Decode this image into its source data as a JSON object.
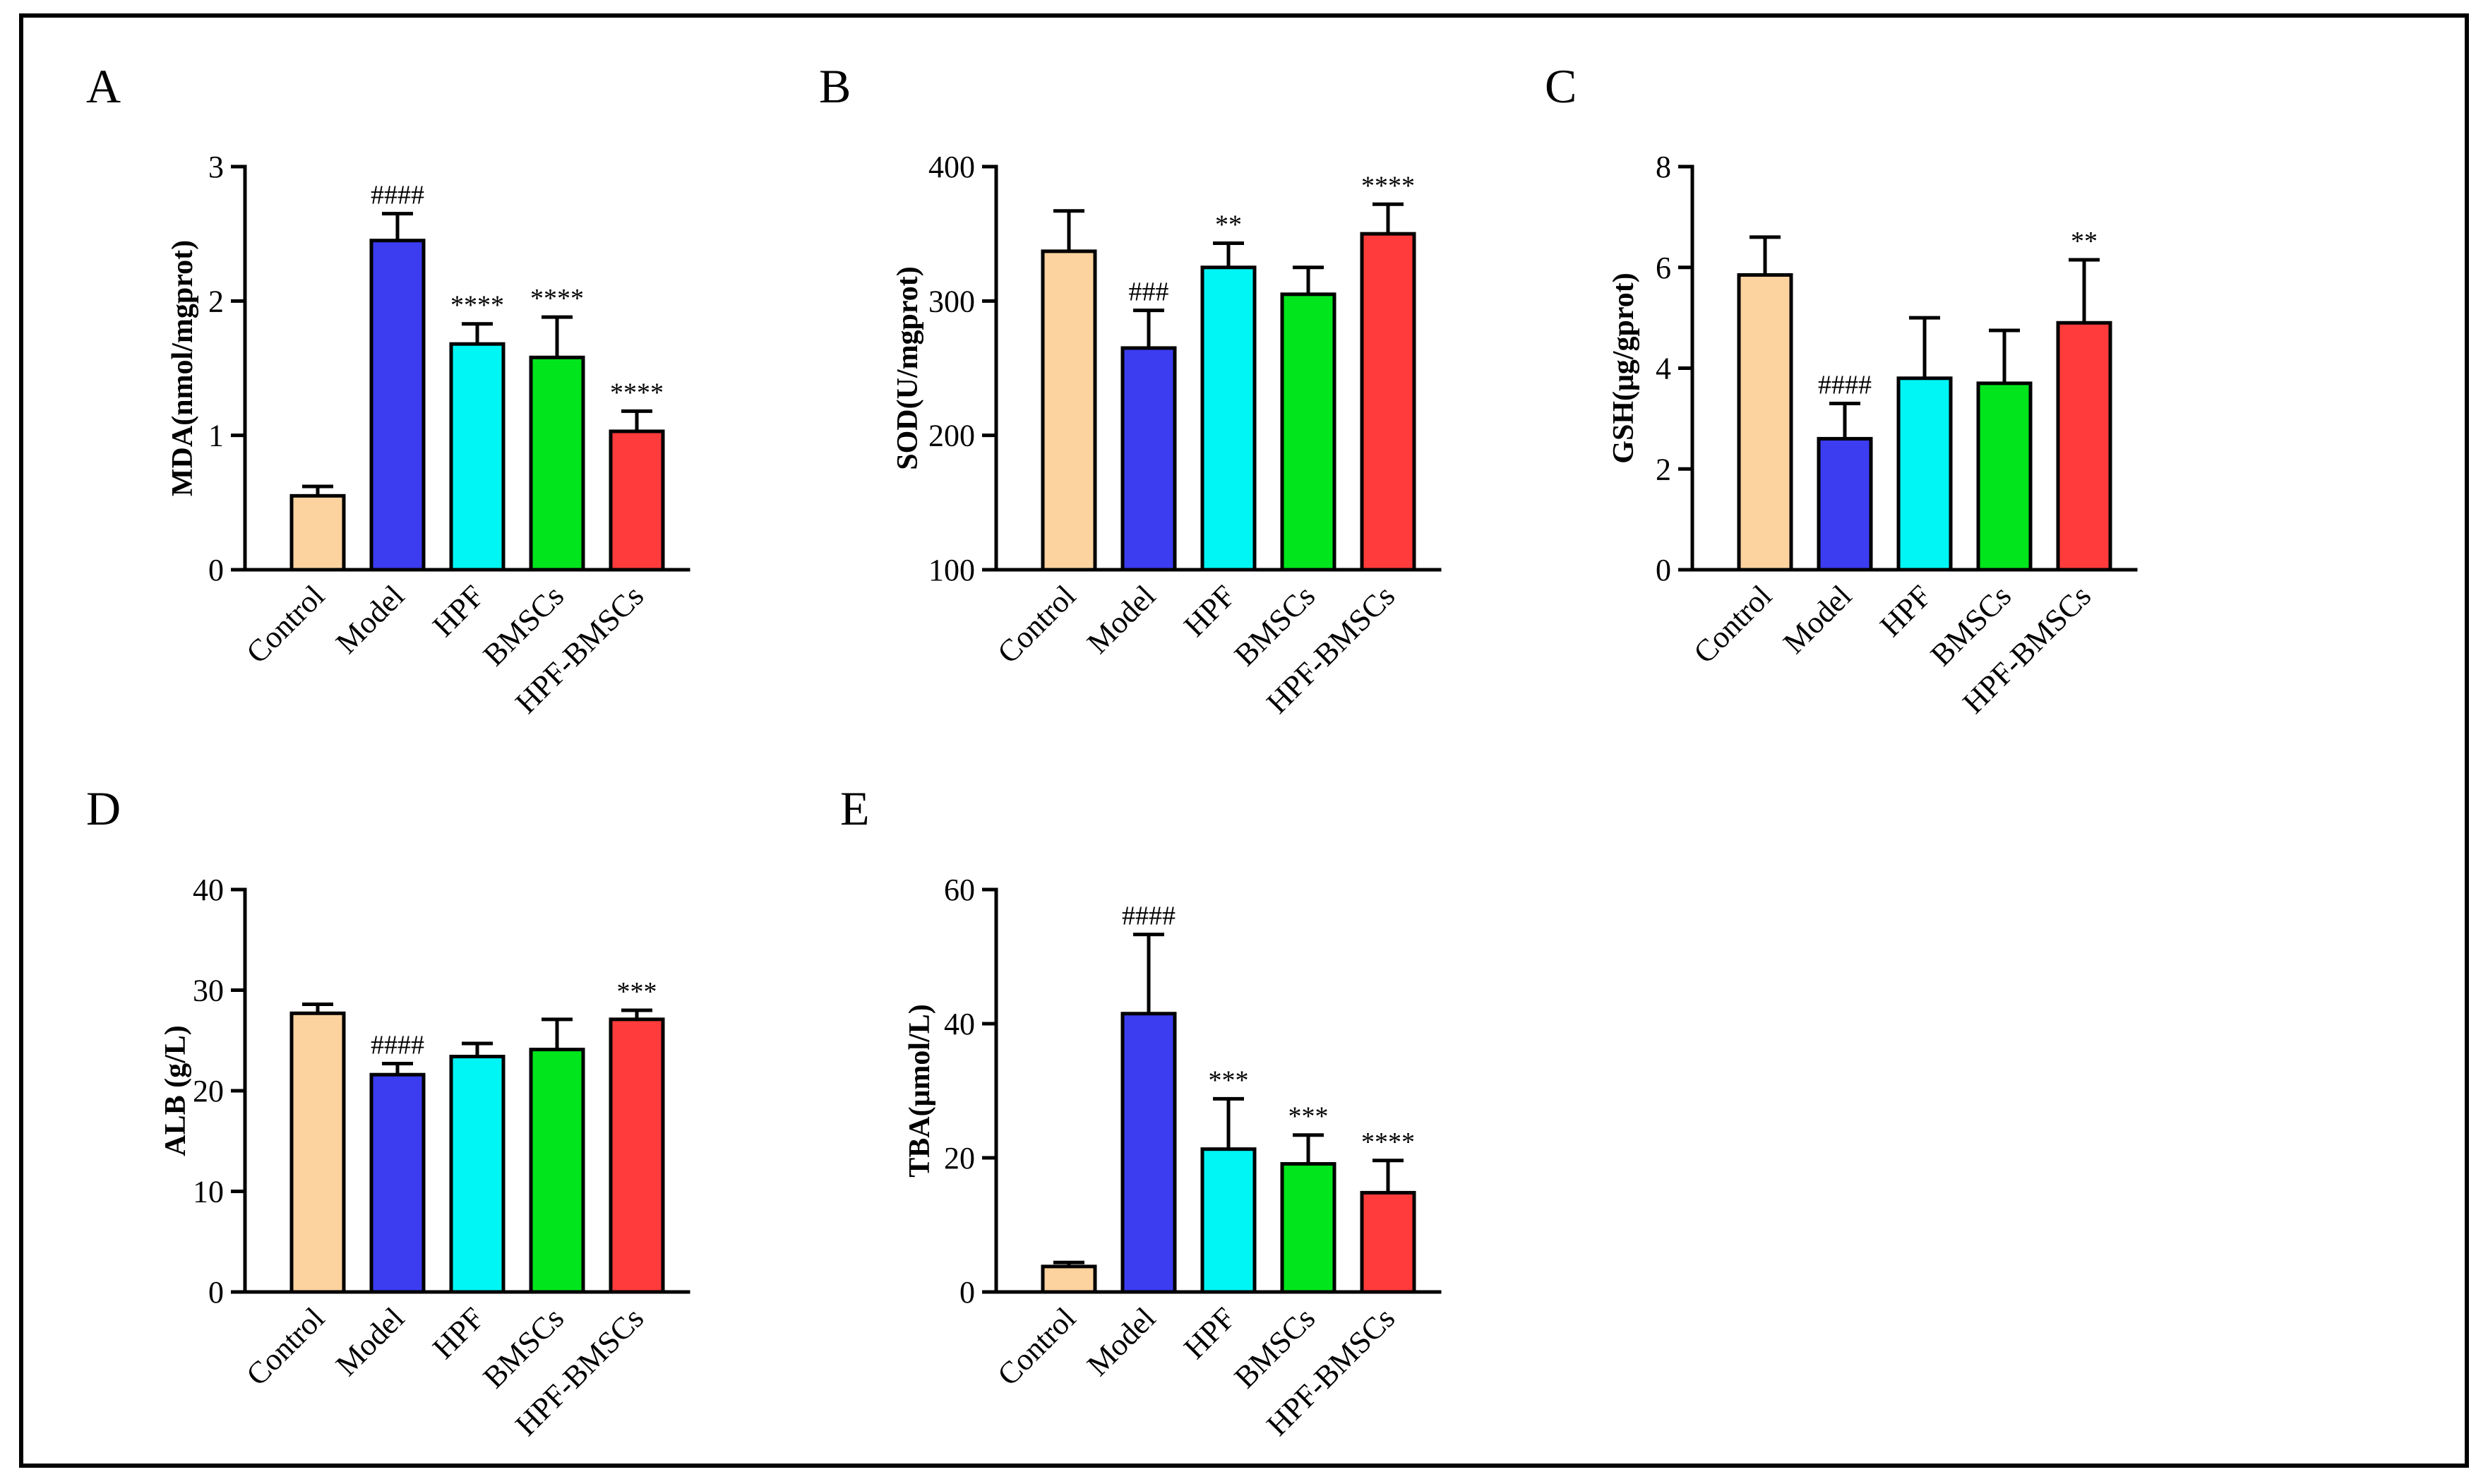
{
  "chart_data": [
    {
      "panel": "A",
      "type": "bar",
      "ylabel": "MDA(nmol/mgprot)",
      "ylim": [
        0,
        3
      ],
      "yticks": [
        0,
        1,
        2,
        3
      ],
      "ytick_labels": [
        "0",
        "1",
        "2",
        "3"
      ],
      "categories": [
        "Control",
        "Model",
        "HPF",
        "BMSCs",
        "HPF-BMSCs"
      ],
      "values": [
        0.55,
        2.45,
        1.68,
        1.58,
        1.03
      ],
      "errors": [
        0.07,
        0.2,
        0.15,
        0.3,
        0.15
      ],
      "significance": [
        "",
        "####",
        "****",
        "****",
        "****"
      ]
    },
    {
      "panel": "B",
      "type": "bar",
      "ylabel": "SOD(U/mgprot)",
      "ylim": [
        100,
        400
      ],
      "yticks": [
        100,
        200,
        300,
        400
      ],
      "ytick_labels": [
        "100",
        "200",
        "300",
        "400"
      ],
      "categories": [
        "Control",
        "Model",
        "HPF",
        "BMSCs",
        "HPF-BMSCs"
      ],
      "values": [
        337,
        265,
        325,
        305,
        350
      ],
      "errors": [
        30,
        28,
        18,
        20,
        22
      ],
      "significance": [
        "",
        "###",
        "**",
        "",
        "****"
      ]
    },
    {
      "panel": "C",
      "type": "bar",
      "ylabel": "GSH(μg/gprot)",
      "ylim": [
        0,
        8
      ],
      "yticks": [
        0,
        2,
        4,
        6,
        8
      ],
      "ytick_labels": [
        "0",
        "2",
        "4",
        "6",
        "8"
      ],
      "categories": [
        "Control",
        "Model",
        "HPF",
        "BMSCs",
        "HPF-BMSCs"
      ],
      "values": [
        5.85,
        2.6,
        3.8,
        3.7,
        4.9
      ],
      "errors": [
        0.75,
        0.7,
        1.2,
        1.05,
        1.25
      ],
      "significance": [
        "",
        "####",
        "",
        "",
        "**"
      ]
    },
    {
      "panel": "D",
      "type": "bar",
      "ylabel": "ALB (g/L)",
      "ylim": [
        0,
        40
      ],
      "yticks": [
        0,
        10,
        20,
        30,
        40
      ],
      "ytick_labels": [
        "0",
        "10",
        "20",
        "30",
        "40"
      ],
      "categories": [
        "Control",
        "Model",
        "HPF",
        "BMSCs",
        "HPF-BMSCs"
      ],
      "values": [
        27.7,
        21.6,
        23.4,
        24.1,
        27.1
      ],
      "errors": [
        0.9,
        1.1,
        1.3,
        3.0,
        0.9
      ],
      "significance": [
        "",
        "####",
        "",
        "",
        "***"
      ]
    },
    {
      "panel": "E",
      "type": "bar",
      "ylabel": "TBA(μmol/L)",
      "ylim": [
        0,
        60
      ],
      "yticks": [
        0,
        20,
        40,
        60
      ],
      "ytick_labels": [
        "0",
        "20",
        "40",
        "60"
      ],
      "categories": [
        "Control",
        "Model",
        "HPF",
        "BMSCs",
        "HPF-BMSCs"
      ],
      "values": [
        3.8,
        41.5,
        21.3,
        19.1,
        14.8
      ],
      "errors": [
        0.6,
        11.8,
        7.5,
        4.3,
        4.8
      ],
      "significance": [
        "",
        "####",
        "***",
        "***",
        "****"
      ]
    }
  ],
  "colors": {
    "bars": [
      "#fcd29f",
      "#3c3cf0",
      "#00f5f5",
      "#00e51c",
      "#ff3b3b"
    ],
    "stroke": "#000000",
    "frame": "#000000",
    "background": "#ffffff"
  }
}
